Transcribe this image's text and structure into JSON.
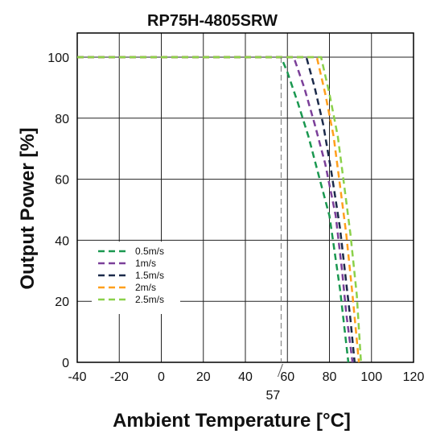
{
  "chart_data": {
    "type": "line",
    "title": "RP75H-4805SRW",
    "xlabel": "Ambient Temperature [°C]",
    "ylabel": "Output Power [%]",
    "xlim": [
      -40,
      120
    ],
    "ylim": [
      0,
      100
    ],
    "xticks": [
      -40,
      -20,
      0,
      20,
      40,
      60,
      80,
      100,
      120
    ],
    "yticks": [
      0,
      20,
      40,
      60,
      80,
      100
    ],
    "grid": true,
    "legend_position": "lower-left",
    "annotation": {
      "label": "57",
      "x": 57
    },
    "series": [
      {
        "name": "0.5m/s",
        "color": "#1a9850",
        "points": [
          [
            -40,
            100
          ],
          [
            57,
            100
          ],
          [
            60,
            95
          ],
          [
            65,
            85
          ],
          [
            70,
            74
          ],
          [
            75,
            61
          ],
          [
            80,
            48
          ],
          [
            85,
            24
          ],
          [
            89,
            0
          ]
        ]
      },
      {
        "name": "1m/s",
        "color": "#7b3f99",
        "points": [
          [
            -40,
            100
          ],
          [
            63,
            100
          ],
          [
            68,
            90
          ],
          [
            73,
            78
          ],
          [
            78,
            65
          ],
          [
            83,
            48
          ],
          [
            86,
            30
          ],
          [
            88,
            16
          ],
          [
            91,
            0
          ]
        ]
      },
      {
        "name": "1.5m/s",
        "color": "#1b2a4a",
        "points": [
          [
            -40,
            100
          ],
          [
            69,
            100
          ],
          [
            73,
            90
          ],
          [
            77,
            78
          ],
          [
            81,
            62
          ],
          [
            85,
            44
          ],
          [
            88,
            26
          ],
          [
            90,
            14
          ],
          [
            92,
            0
          ]
        ]
      },
      {
        "name": "2m/s",
        "color": "#ff9f1c",
        "points": [
          [
            -40,
            100
          ],
          [
            74,
            100
          ],
          [
            78,
            88
          ],
          [
            82,
            74
          ],
          [
            85,
            58
          ],
          [
            88,
            42
          ],
          [
            91,
            22
          ],
          [
            94,
            0
          ]
        ]
      },
      {
        "name": "2.5m/s",
        "color": "#8bd14a",
        "points": [
          [
            -40,
            100
          ],
          [
            76,
            100
          ],
          [
            80,
            88
          ],
          [
            84,
            74
          ],
          [
            87,
            58
          ],
          [
            90,
            42
          ],
          [
            93,
            22
          ],
          [
            95,
            0
          ]
        ]
      }
    ]
  }
}
